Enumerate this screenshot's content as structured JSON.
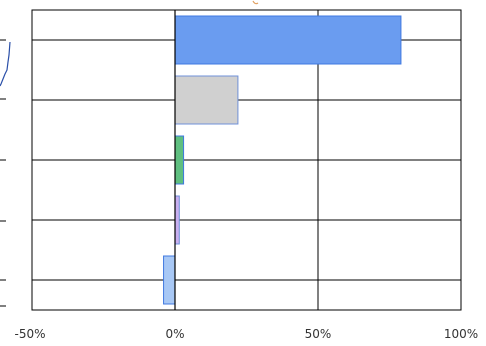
{
  "chart_data": {
    "type": "bar",
    "orientation": "horizontal",
    "title": "",
    "xlabel": "",
    "ylabel": "",
    "x_ticks": [
      "-50%",
      "0%",
      "50%",
      "100%"
    ],
    "x_tick_values": [
      -50,
      0,
      50,
      100
    ],
    "xlim": [
      -50,
      100
    ],
    "grid": "vertical and horizontal gridlines",
    "bars": [
      {
        "value": 79,
        "fill": "#6a9cf0",
        "stroke": "#3f78e0"
      },
      {
        "value": 22,
        "fill": "#d0d0d0",
        "stroke": "#6f90d8"
      },
      {
        "value": 3,
        "fill": "#5fbf80",
        "stroke": "#3f78e0"
      },
      {
        "value": 1.5,
        "fill": "#c9b0f0",
        "stroke": "#6f90d8"
      },
      {
        "value": -4,
        "fill": "#a8c8f5",
        "stroke": "#3f78e0"
      }
    ]
  }
}
